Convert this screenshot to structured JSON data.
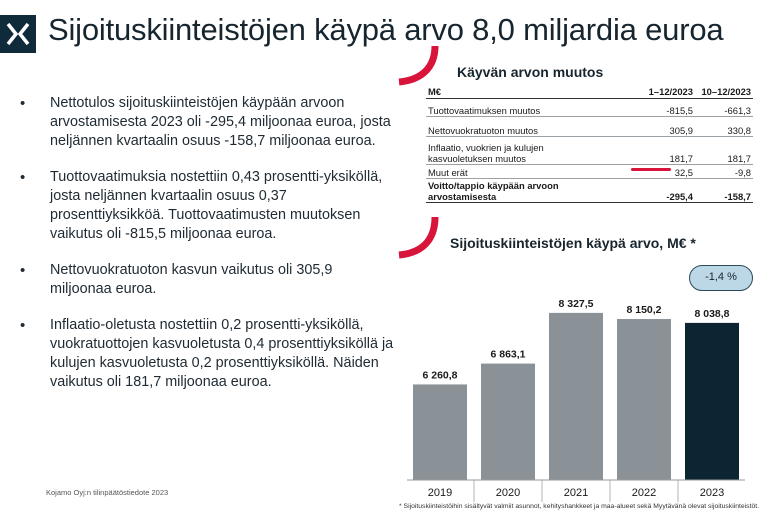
{
  "header": {
    "title": "Sijoituskiinteistöjen käypä arvo 8,0 miljardia euroa",
    "logo_icon": "kojamo-logo-icon"
  },
  "bullets": [
    "Nettotulos sijoituskiinteistöjen käypään arvoon arvostamisesta 2023 oli -295,4 miljoonaa euroa, josta neljännen kvartaalin osuus -158,7 miljoonaa euroa.",
    "Tuottovaatimuksia nostettiin 0,43 prosentti-yksiköllä, josta neljännen kvartaalin osuus 0,37 prosenttiyksikköä. Tuottovaatimusten muutoksen vaikutus oli -815,5 miljoonaa euroa.",
    "Nettovuokratuoton kasvun vaikutus oli 305,9 miljoonaa euroa.",
    "Inflaatio-oletusta nostettiin 0,2 prosentti-yksiköllä, vuokratuottojen kasvuoletusta 0,4 prosenttiyksiköllä ja kulujen kasvuoletusta 0,2 prosenttiyksiköllä. Näiden vaikutus oli 181,7 miljoonaa euroa."
  ],
  "footer_note": "Kojamo Oyj:n tilinpäätöstiedote 2023",
  "value_table": {
    "title": "Käyvän arvon muutos",
    "headers": [
      "M€",
      "1–12/2023",
      "10–12/2023"
    ],
    "rows": [
      {
        "label": "Tuottovaatimuksen muutos",
        "a": "-815,5",
        "b": "-661,3"
      },
      {
        "label": "Nettovuokratuoton muutos",
        "a": "305,9",
        "b": "330,8"
      },
      {
        "label": "Inflaatio, vuokrien ja kulujen kasvuoletuksen muutos",
        "a": "181,7",
        "b": "181,7"
      },
      {
        "label": "Muut erät",
        "a": "32,5",
        "b": "-9,8"
      }
    ],
    "total": {
      "label": "Voitto/tappio käypään arvoon arvostamisesta",
      "a": "-295,4",
      "b": "-158,7"
    }
  },
  "chart_data": {
    "type": "bar",
    "title": "Sijoituskiinteistöjen käypä arvo, M€ *",
    "categories": [
      "2019",
      "2020",
      "2021",
      "2022",
      "2023"
    ],
    "values": [
      6260.8,
      6863.1,
      8327.5,
      8150.2,
      8038.8
    ],
    "value_labels": [
      "6 260,8",
      "6 863,1",
      "8 327,5",
      "8 150,2",
      "8 038,8"
    ],
    "ylim": [
      3500,
      8700
    ],
    "grid": false,
    "colors": {
      "default": "#8a9298",
      "highlight": "#0d2433"
    },
    "highlight_index": 4,
    "badge": "-1,4 %",
    "footnote": "* Sijoituskiinteistöihin sisältyvät valmiit asunnot, kehityshankkeet ja maa-alueet sekä Myytävänä olevat sijoituskiinteistöt."
  },
  "colors": {
    "accent": "#d9143a",
    "navy": "#0f2a3a"
  }
}
